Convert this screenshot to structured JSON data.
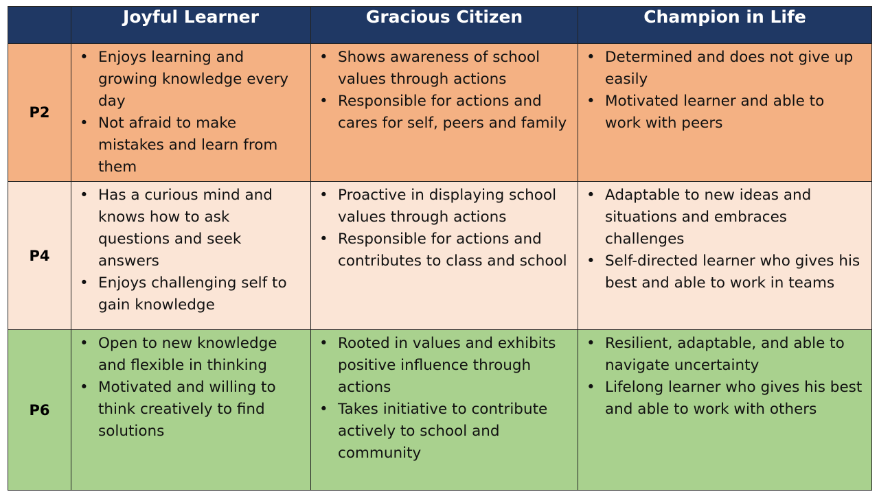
{
  "header": {
    "corner": "",
    "columns": [
      "Joyful Learner",
      "Gracious Citizen",
      "Champion in Life"
    ]
  },
  "row_colors": {
    "P2": "#f4b183",
    "P4": "#fbe5d6",
    "P6": "#a9d18e",
    "header": "#1f3864"
  },
  "rows": [
    {
      "label": "P2",
      "cells": [
        [
          "Enjoys learning and growing knowledge every day",
          "Not afraid to make mistakes and learn from them"
        ],
        [
          "Shows awareness of school values through actions",
          "Responsible for actions and cares for self, peers and family"
        ],
        [
          "Determined and does not give up easily",
          "Motivated learner and able to work with peers"
        ]
      ]
    },
    {
      "label": "P4",
      "cells": [
        [
          "Has a curious mind and knows how to ask questions and seek answers",
          "Enjoys challenging self to gain knowledge"
        ],
        [
          "Proactive in displaying school values through actions",
          "Responsible for actions and contributes to class and school"
        ],
        [
          "Adaptable to new ideas and situations and embraces challenges",
          "Self-directed learner who gives his best and able to work in teams"
        ]
      ]
    },
    {
      "label": "P6",
      "cells": [
        [
          "Open to new knowledge and flexible in thinking",
          "Motivated and willing to think creatively to find solutions"
        ],
        [
          "Rooted in values and exhibits positive influence through actions",
          "Takes initiative to contribute actively to school and community"
        ],
        [
          "Resilient, adaptable, and able to navigate uncertainty",
          "Lifelong learner who gives his best and able to work with others"
        ]
      ]
    }
  ]
}
